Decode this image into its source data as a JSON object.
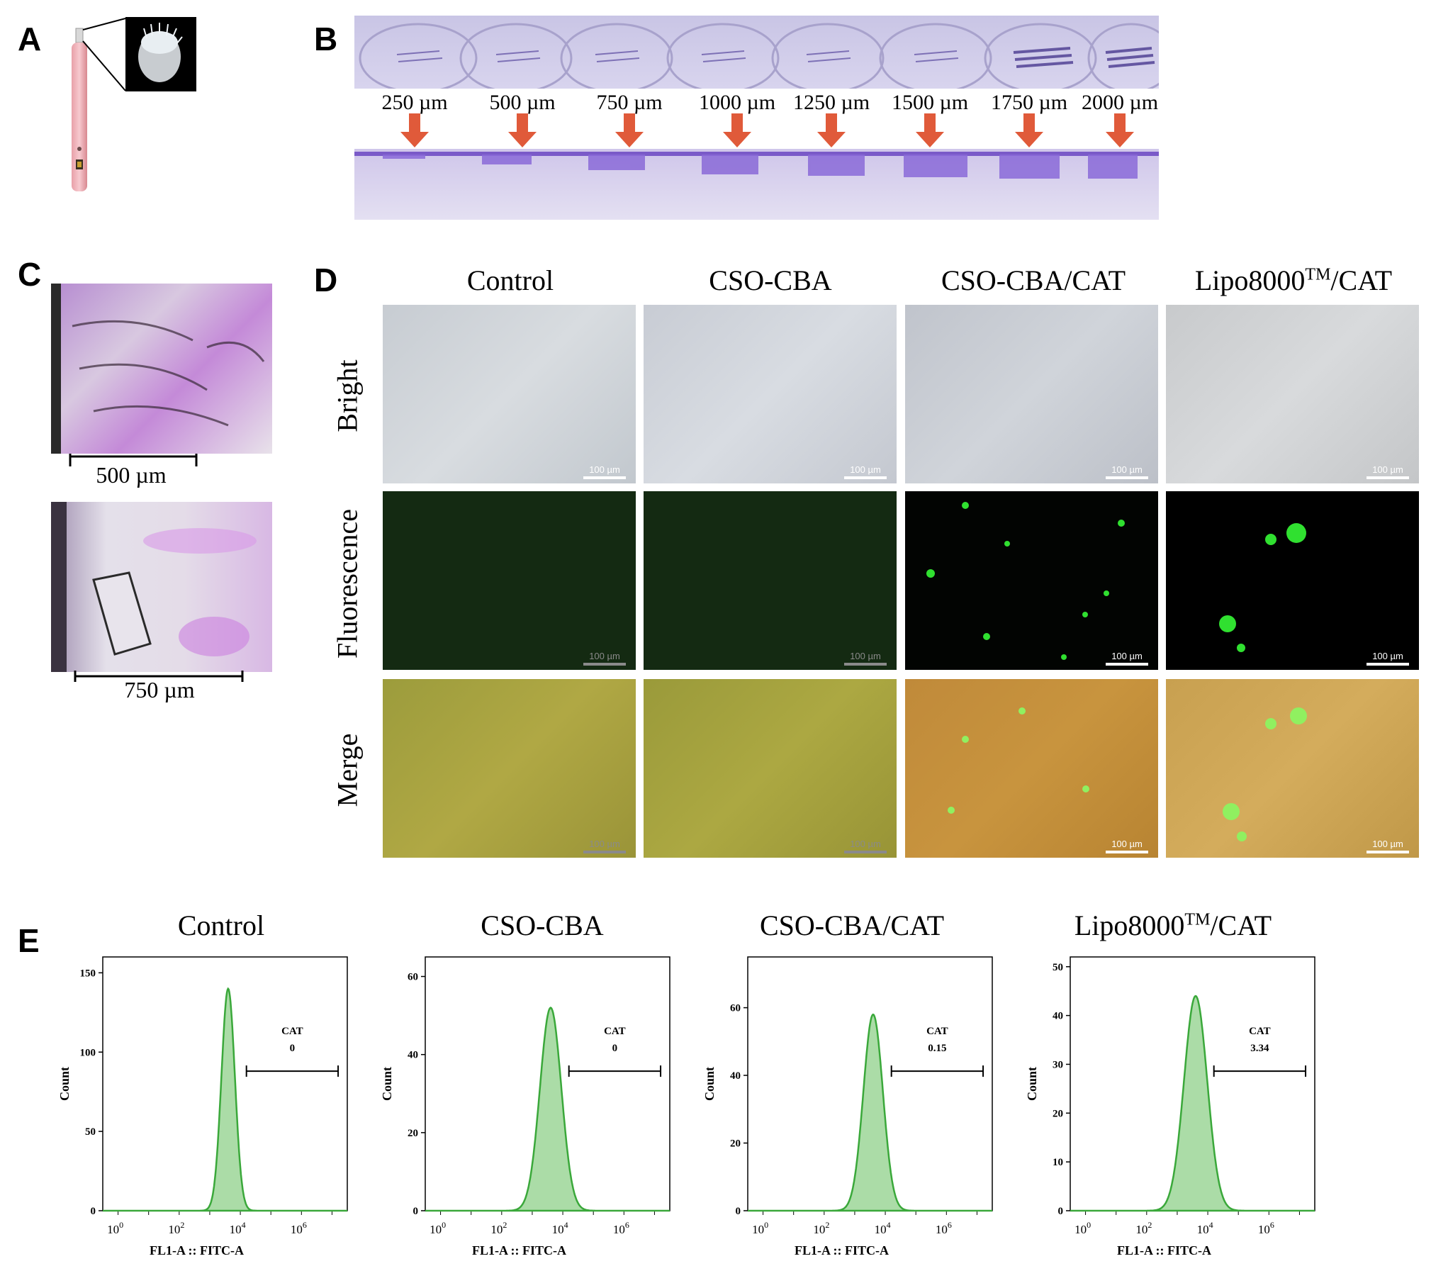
{
  "panels": {
    "A": "A",
    "B": "B",
    "C": "C",
    "D": "D",
    "E": "E"
  },
  "panel_b": {
    "depths": [
      "250 µm",
      "500 µm",
      "750 µm",
      "1000 µm",
      "1250 µm",
      "1500 µm",
      "1750 µm",
      "2000 µm"
    ],
    "arrow_color": "#e05a3a"
  },
  "panel_c": {
    "scale_top": "500 µm",
    "scale_bottom": "750 µm"
  },
  "panel_d": {
    "columns": [
      "Control",
      "CSO-CBA",
      "CSO-CBA/CAT",
      "Lipo8000"
    ],
    "column_tm": "TM",
    "column_tm_suffix": "/CAT",
    "rows": [
      "Bright",
      "Fluorescence",
      "Merge"
    ],
    "scale_label": "100 µm"
  },
  "panel_e": {
    "x_label": "FL1-A :: FITC-A",
    "y_label": "Count",
    "gate_name": "CAT",
    "series_color": "#3aa83a"
  },
  "chart_data": [
    {
      "type": "area",
      "title": "Control",
      "xlabel": "FL1-A :: FITC-A",
      "ylabel": "Count",
      "x_scale": "log",
      "x_ticks": [
        "10^0",
        "10^2",
        "10^4",
        "10^6"
      ],
      "ylim": [
        0,
        160
      ],
      "y_ticks": [
        0,
        50,
        100,
        150
      ],
      "peak_x": 4000,
      "peak_y": 140,
      "width": 0.22,
      "gate_value": "0"
    },
    {
      "type": "area",
      "title": "CSO-CBA",
      "xlabel": "FL1-A :: FITC-A",
      "ylabel": "Count",
      "x_scale": "log",
      "x_ticks": [
        "10^0",
        "10^2",
        "10^4",
        "10^6"
      ],
      "ylim": [
        0,
        65
      ],
      "y_ticks": [
        0,
        20,
        40,
        60
      ],
      "peak_x": 4000,
      "peak_y": 52,
      "width": 0.35,
      "gate_value": "0"
    },
    {
      "type": "area",
      "title": "CSO-CBA/CAT",
      "xlabel": "FL1-A :: FITC-A",
      "ylabel": "Count",
      "x_scale": "log",
      "x_ticks": [
        "10^0",
        "10^2",
        "10^4",
        "10^6"
      ],
      "ylim": [
        0,
        75
      ],
      "y_ticks": [
        0,
        20,
        40,
        60
      ],
      "peak_x": 4000,
      "peak_y": 58,
      "width": 0.32,
      "gate_value": "0.15"
    },
    {
      "type": "area",
      "title": "Lipo8000TM/CAT",
      "xlabel": "FL1-A :: FITC-A",
      "ylabel": "Count",
      "x_scale": "log",
      "x_ticks": [
        "10^0",
        "10^2",
        "10^4",
        "10^6"
      ],
      "ylim": [
        0,
        52
      ],
      "y_ticks": [
        0,
        10,
        20,
        30,
        40,
        50
      ],
      "peak_x": 4000,
      "peak_y": 44,
      "width": 0.38,
      "gate_value": "3.34"
    }
  ]
}
